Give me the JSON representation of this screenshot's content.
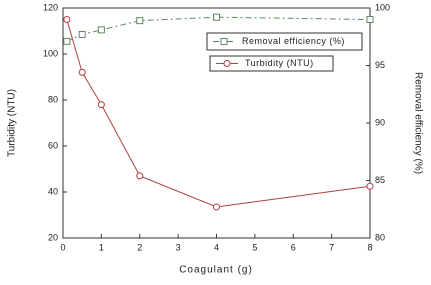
{
  "chart_data": {
    "type": "line",
    "x_label": "Coagulant (g)",
    "y_label": "Turbidity (NTU)",
    "y2_label": "Removal efficiency (%)",
    "xlim": [
      0,
      8
    ],
    "xticks": [
      0,
      1,
      2,
      3,
      4,
      5,
      6,
      7,
      8
    ],
    "ylim": [
      20,
      120
    ],
    "yticks": [
      20,
      40,
      60,
      80,
      100,
      120
    ],
    "y2lim": [
      80,
      100
    ],
    "y2ticks": [
      80,
      85,
      90,
      95,
      100
    ],
    "series": [
      {
        "name": "Removal efficiency (%)",
        "color": "#5f8a5f",
        "marker": "square",
        "dash": "6 3 2 3",
        "axis": "y2",
        "x": [
          0.1,
          0.5,
          1,
          2,
          4,
          8
        ],
        "values": [
          97.1,
          97.7,
          98.1,
          98.9,
          99.2,
          99.0
        ]
      },
      {
        "name": "Turbidity (NTU)",
        "color": "#b04040",
        "marker": "circle",
        "dash": "none",
        "x": [
          0.1,
          0.5,
          1,
          2,
          4,
          8
        ],
        "values": [
          115,
          92,
          78,
          47,
          33.5,
          42.5
        ]
      }
    ]
  }
}
